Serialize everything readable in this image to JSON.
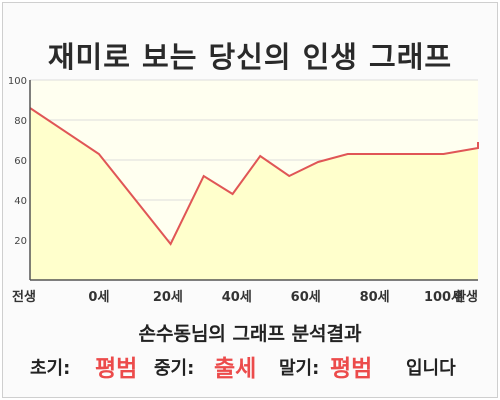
{
  "title": "재미로 보는 당신의 인생 그래프",
  "colors": {
    "line": "#e05656",
    "fill": "#ffffcc",
    "plot_bg": "#fffff0",
    "grid": "#dddddd",
    "axis": "#555555",
    "highlight": "#ec4b4b"
  },
  "chart_data": {
    "type": "area",
    "x_labels": [
      "전생",
      "0세",
      "20세",
      "40세",
      "60세",
      "80세",
      "100세",
      "환생"
    ],
    "x": [
      -1,
      0,
      1.04,
      1.52,
      1.94,
      2.34,
      2.76,
      3.18,
      3.61,
      4.0,
      4.5,
      5.0,
      5.55,
      6.0
    ],
    "y": [
      86,
      63,
      18,
      52,
      43,
      62,
      52,
      59,
      63,
      63,
      63,
      63,
      66,
      69
    ],
    "y_ticks": [
      20,
      40,
      60,
      80,
      100
    ],
    "ylim": [
      0,
      100
    ],
    "grid": true,
    "legend": "none"
  },
  "result": {
    "title": "손수동님의 그래프 분석결과",
    "early_label": "초기:",
    "early_value": "평범",
    "middle_label": "중기:",
    "middle_value": "출세",
    "late_label": "말기:",
    "late_value": "평범",
    "suffix": "입니다"
  }
}
